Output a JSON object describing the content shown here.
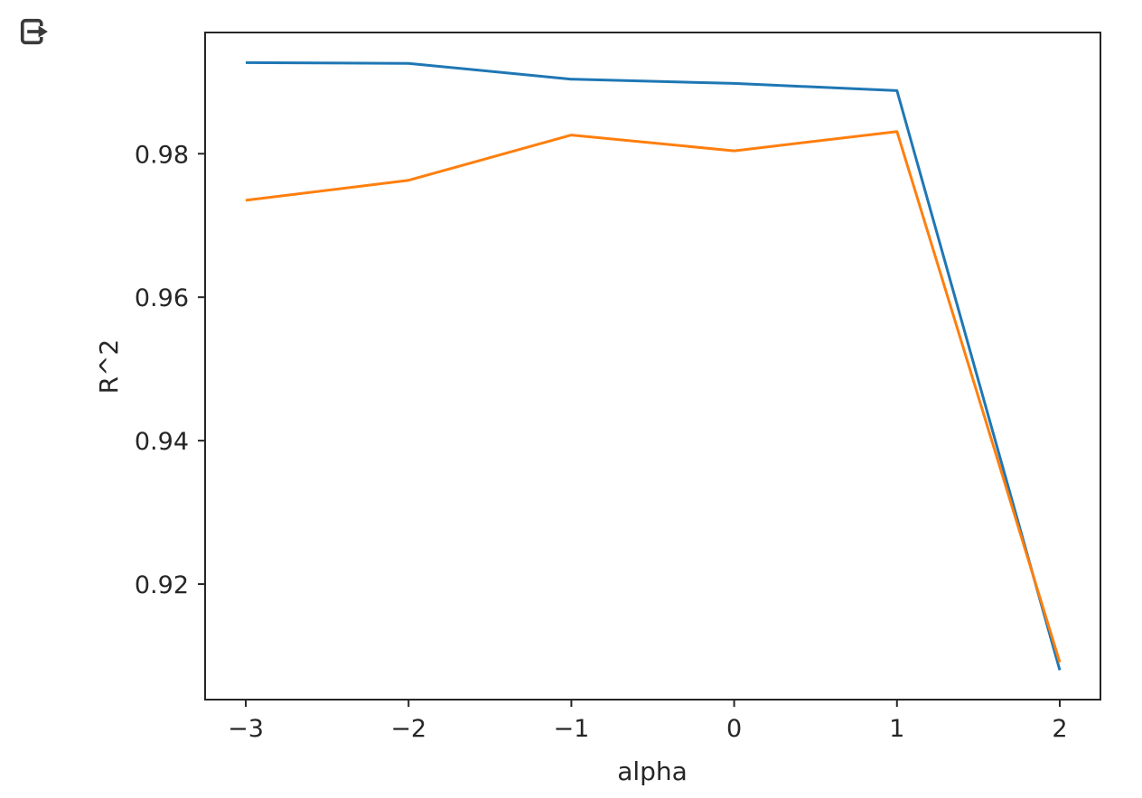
{
  "window": {
    "background_color": "#ffffff"
  },
  "toolbar": {
    "export_button": {
      "icon": "export-arrow-icon",
      "color": "#3a3a3a"
    }
  },
  "chart_data": {
    "type": "line",
    "title": "",
    "xlabel": "alpha",
    "ylabel": "R^2",
    "x": [
      -3,
      -2,
      -1,
      0,
      1,
      2
    ],
    "series": [
      {
        "name": "series-blue",
        "color": "#1f77b4",
        "values": [
          0.9927,
          0.9926,
          0.9904,
          0.9898,
          0.9888,
          0.908
        ]
      },
      {
        "name": "series-orange",
        "color": "#ff7f0e",
        "values": [
          0.9735,
          0.9763,
          0.9826,
          0.9804,
          0.9831,
          0.9091
        ]
      }
    ],
    "xlim": [
      -3.25,
      2.25
    ],
    "ylim": [
      0.9039,
      0.9969
    ],
    "xtick_values": [
      -3,
      -2,
      -1,
      0,
      1,
      2
    ],
    "xtick_labels": [
      "−3",
      "−2",
      "−1",
      "0",
      "1",
      "2"
    ],
    "ytick_values": [
      0.92,
      0.94,
      0.96,
      0.98
    ],
    "ytick_labels": [
      "0.92",
      "0.94",
      "0.96",
      "0.98"
    ],
    "grid": false,
    "legend_position": "none",
    "axis_color": "#262626",
    "line_width": 3
  }
}
